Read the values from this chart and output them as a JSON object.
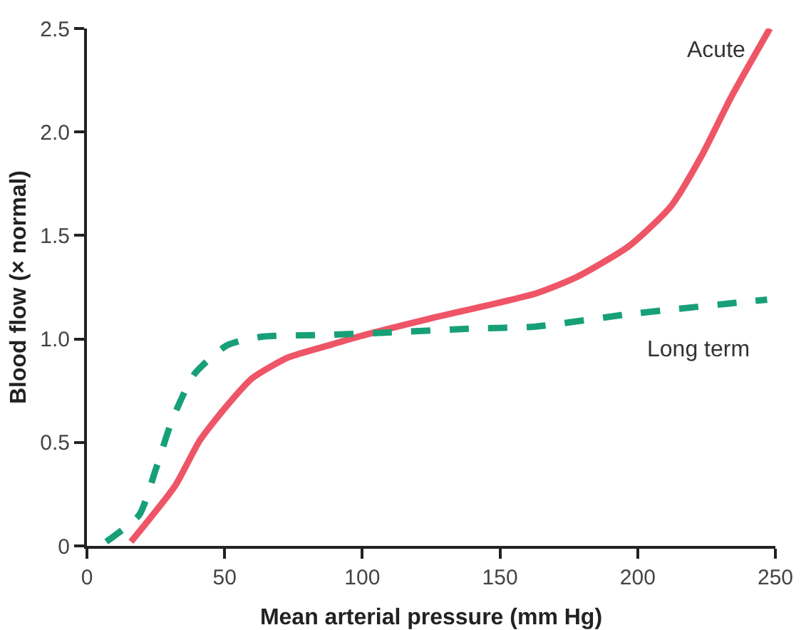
{
  "chart_data": {
    "type": "line",
    "xlabel": "Mean arterial pressure (mm Hg)",
    "ylabel": "Blood flow (× normal)",
    "xlim": [
      0,
      250
    ],
    "xticks": [
      0,
      50,
      100,
      150,
      200,
      250
    ],
    "ylim": [
      0,
      2.5
    ],
    "yticks": [
      0,
      0.5,
      {
        "value": 1,
        "label": "1.0"
      },
      1.5,
      {
        "value": 2,
        "label": "2.0"
      },
      2.5
    ],
    "grid": false,
    "legend": false,
    "marker": "none",
    "series": [
      {
        "name": "Acute",
        "color": "#ee5566",
        "line_style": "solid",
        "x": [
          16,
          32,
          41,
          51,
          60,
          73,
          88,
          101,
          125,
          163,
          178,
          197,
          212,
          223,
          234,
          248
        ],
        "values": [
          0.02,
          0.29,
          0.51,
          0.68,
          0.81,
          0.91,
          0.97,
          1.02,
          1.1,
          1.22,
          1.3,
          1.45,
          1.64,
          1.88,
          2.17,
          2.5
        ]
      },
      {
        "name": "Long term",
        "color": "#17a078",
        "line_style": "dashed",
        "x": [
          7,
          19,
          25,
          31,
          39,
          51,
          63,
          88,
          107,
          140,
          163,
          197,
          247
        ],
        "values": [
          0.02,
          0.15,
          0.37,
          0.61,
          0.83,
          0.97,
          1.01,
          1.02,
          1.03,
          1.05,
          1.06,
          1.12,
          1.19
        ]
      }
    ]
  }
}
